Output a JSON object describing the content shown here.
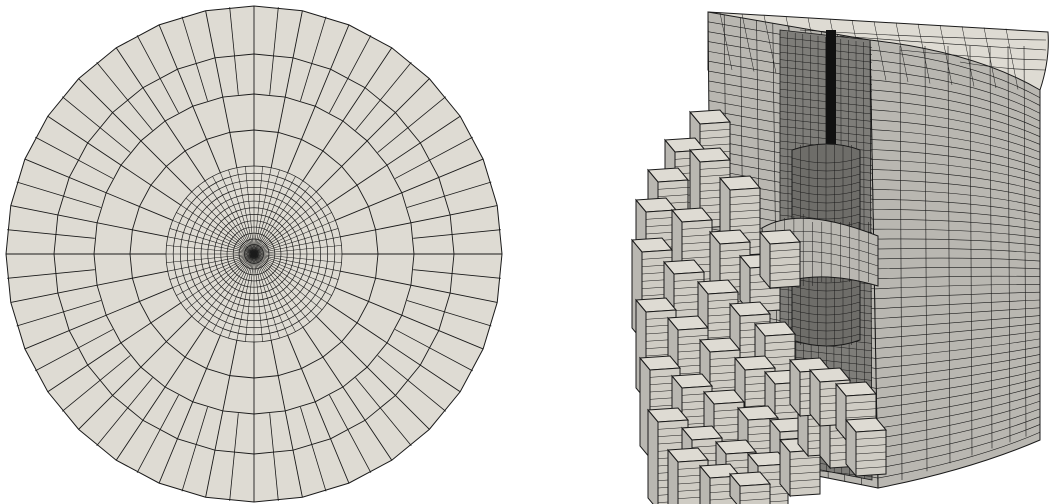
{
  "figure": {
    "panels": [
      {
        "id": "top-view",
        "description": ""
      },
      {
        "id": "cutaway-view",
        "description": ""
      }
    ]
  },
  "colors": {
    "background": "#ffffff",
    "face_light": "#dedbd3",
    "face_mid": "#b9b7b1",
    "face_dark": "#7e7d79",
    "edge": "#1a1a1a"
  }
}
